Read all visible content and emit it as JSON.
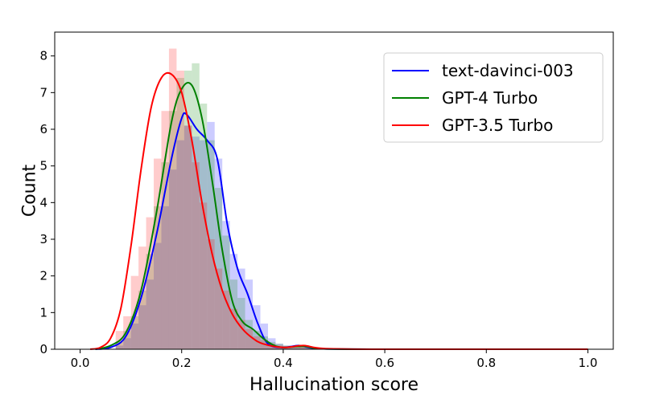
{
  "chart_data": {
    "type": "histogram_kde",
    "title": "",
    "xlabel": "Hallucination score",
    "ylabel": "Count",
    "xlim": [
      -0.05,
      1.05
    ],
    "ylim": [
      0,
      8.65
    ],
    "xticks": [
      "0.0",
      "0.2",
      "0.4",
      "0.6",
      "0.8",
      "1.0"
    ],
    "yticks": [
      "0",
      "1",
      "2",
      "3",
      "4",
      "5",
      "6",
      "7",
      "8"
    ],
    "grid": false,
    "legend_position": "top-right",
    "bin_edges": [
      0.07,
      0.085,
      0.1,
      0.115,
      0.13,
      0.145,
      0.16,
      0.175,
      0.19,
      0.205,
      0.22,
      0.235,
      0.25,
      0.265,
      0.28,
      0.295,
      0.31,
      0.325,
      0.34,
      0.355,
      0.37,
      0.385,
      0.4,
      0.415,
      0.43,
      0.445,
      0.46,
      0.475
    ],
    "series": [
      {
        "name": "text-davinci-003",
        "color": "#0000ff",
        "hist": [
          0.1,
          0.3,
          0.7,
          1.2,
          1.9,
          2.9,
          3.9,
          4.9,
          5.7,
          6.1,
          5.8,
          5.7,
          6.2,
          5.2,
          3.5,
          2.6,
          2.2,
          1.9,
          1.2,
          0.7,
          0.3,
          0.15,
          0.1,
          0.05,
          0.1,
          0.05,
          0.02
        ],
        "kde_x": [
          0.03,
          0.06,
          0.09,
          0.12,
          0.15,
          0.18,
          0.2,
          0.21,
          0.23,
          0.25,
          0.27,
          0.29,
          0.31,
          0.33,
          0.35,
          0.37,
          0.4,
          0.43,
          0.45,
          0.48,
          0.6,
          0.8,
          1.0
        ],
        "kde_y": [
          0.0,
          0.05,
          0.35,
          1.4,
          3.1,
          5.2,
          6.3,
          6.4,
          6.0,
          5.7,
          5.2,
          3.4,
          2.2,
          1.5,
          0.7,
          0.15,
          0.05,
          0.1,
          0.05,
          0.01,
          0.0,
          0.0,
          0.0
        ]
      },
      {
        "name": "GPT-4 Turbo",
        "color": "#008000",
        "hist": [
          0.2,
          0.5,
          0.9,
          1.6,
          2.6,
          3.9,
          5.1,
          6.5,
          7.4,
          7.6,
          7.8,
          6.7,
          5.7,
          4.4,
          3.1,
          1.9,
          1.4,
          0.8,
          0.5,
          0.35,
          0.2,
          0.15,
          0.1,
          0.05,
          0.1,
          0.05,
          0.02
        ],
        "kde_x": [
          0.03,
          0.06,
          0.09,
          0.12,
          0.15,
          0.18,
          0.2,
          0.22,
          0.24,
          0.26,
          0.28,
          0.3,
          0.32,
          0.34,
          0.36,
          0.38,
          0.4,
          0.44,
          0.48,
          0.6,
          0.8,
          1.0
        ],
        "kde_y": [
          0.0,
          0.1,
          0.45,
          1.6,
          3.7,
          6.2,
          7.1,
          7.2,
          6.3,
          4.6,
          2.7,
          1.3,
          0.75,
          0.55,
          0.3,
          0.12,
          0.05,
          0.08,
          0.01,
          0.0,
          0.0,
          0.0
        ]
      },
      {
        "name": "GPT-3.5 Turbo",
        "color": "#ff0000",
        "hist": [
          0.5,
          0.9,
          2.0,
          2.8,
          3.6,
          5.2,
          6.5,
          8.2,
          7.6,
          6.1,
          5.1,
          4.0,
          3.0,
          2.2,
          1.6,
          1.1,
          0.8,
          0.55,
          0.35,
          0.25,
          0.15,
          0.1,
          0.08,
          0.05,
          0.1,
          0.05,
          0.02
        ],
        "kde_x": [
          0.02,
          0.04,
          0.06,
          0.08,
          0.1,
          0.12,
          0.14,
          0.16,
          0.18,
          0.2,
          0.22,
          0.24,
          0.26,
          0.28,
          0.3,
          0.32,
          0.34,
          0.36,
          0.4,
          0.44,
          0.48,
          0.6,
          0.8,
          1.0
        ],
        "kde_y": [
          0.0,
          0.05,
          0.3,
          1.1,
          2.8,
          4.9,
          6.6,
          7.4,
          7.5,
          7.0,
          5.7,
          4.0,
          2.6,
          1.6,
          0.95,
          0.55,
          0.3,
          0.15,
          0.05,
          0.1,
          0.02,
          0.0,
          0.0,
          0.0
        ]
      }
    ]
  }
}
